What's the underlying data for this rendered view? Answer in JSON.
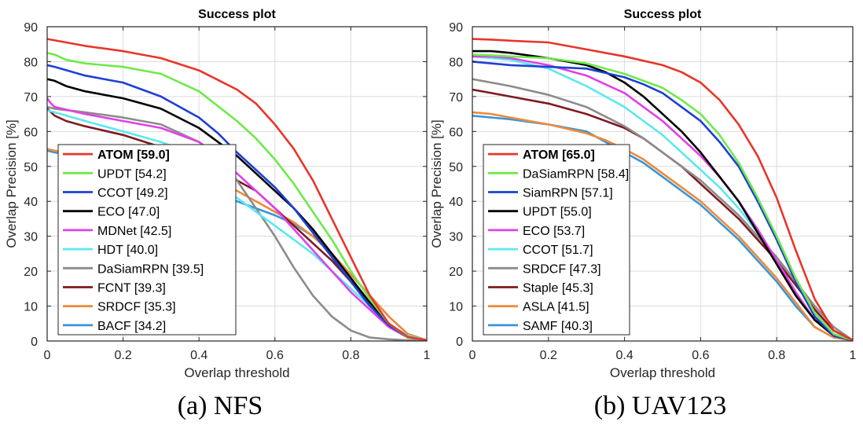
{
  "chart_data": [
    {
      "id": "nfs",
      "type": "line",
      "title": "Success plot",
      "xlabel": "Overlap threshold",
      "ylabel": "Overlap Precision [%]",
      "xlim": [
        0,
        1
      ],
      "ylim": [
        0,
        90
      ],
      "xticks": [
        "0",
        "0.2",
        "0.4",
        "0.6",
        "0.8",
        "1"
      ],
      "yticks": [
        "0",
        "10",
        "20",
        "30",
        "40",
        "50",
        "60",
        "70",
        "80",
        "90"
      ],
      "grid": true,
      "legend_position": "bottom-left",
      "caption": "(a) NFS",
      "series": [
        {
          "name": "ATOM",
          "score": "[59.0]",
          "bold": true,
          "color": "#e8352a",
          "x": [
            0,
            0.05,
            0.1,
            0.2,
            0.3,
            0.4,
            0.5,
            0.55,
            0.6,
            0.65,
            0.7,
            0.75,
            0.8,
            0.85,
            0.9,
            0.95,
            1.0
          ],
          "y": [
            86.5,
            85.5,
            84.5,
            83,
            81,
            77.5,
            72,
            68,
            62,
            55,
            46,
            35,
            24,
            13,
            5,
            1.2,
            0.2
          ]
        },
        {
          "name": "UPDT",
          "score": "[54.2]",
          "color": "#6ee94a",
          "x": [
            0,
            0.02,
            0.05,
            0.1,
            0.2,
            0.3,
            0.4,
            0.5,
            0.55,
            0.6,
            0.65,
            0.7,
            0.75,
            0.8,
            0.85,
            0.9,
            0.95,
            1.0
          ],
          "y": [
            82.5,
            82,
            80.5,
            79.5,
            78.5,
            76.5,
            71.5,
            63,
            58,
            52,
            45,
            37,
            29,
            20,
            12,
            5,
            1,
            0.2
          ]
        },
        {
          "name": "CCOT",
          "score": "[49.2]",
          "color": "#1f3fd4",
          "x": [
            0,
            0.02,
            0.1,
            0.2,
            0.3,
            0.4,
            0.45,
            0.5,
            0.55,
            0.6,
            0.65,
            0.7,
            0.75,
            0.8,
            0.85,
            0.9,
            0.95,
            1.0
          ],
          "y": [
            79,
            78.5,
            76,
            74,
            70,
            64,
            59.5,
            54,
            49,
            44,
            38,
            31,
            24,
            17,
            10,
            4.5,
            1,
            0.2
          ]
        },
        {
          "name": "ECO",
          "score": "[47.0]",
          "color": "#000000",
          "x": [
            0,
            0.02,
            0.05,
            0.1,
            0.2,
            0.3,
            0.4,
            0.45,
            0.5,
            0.55,
            0.6,
            0.65,
            0.7,
            0.75,
            0.8,
            0.85,
            0.9,
            0.95,
            1.0
          ],
          "y": [
            75,
            74.5,
            73,
            71.5,
            69.5,
            66.5,
            61,
            57,
            53,
            48,
            43,
            38,
            32,
            25,
            18,
            11,
            5,
            1,
            0.2
          ]
        },
        {
          "name": "MDNet",
          "score": "[42.5]",
          "color": "#e040e8",
          "x": [
            0,
            0.01,
            0.02,
            0.1,
            0.2,
            0.3,
            0.4,
            0.45,
            0.5,
            0.55,
            0.6,
            0.65,
            0.7,
            0.75,
            0.8,
            0.85,
            0.9,
            0.95,
            1.0
          ],
          "y": [
            69.5,
            68,
            67,
            65,
            63,
            61,
            57,
            53,
            48,
            43,
            38,
            32,
            26,
            20,
            14,
            9,
            4,
            1,
            0.2
          ]
        },
        {
          "name": "HDT",
          "score": "[40.0]",
          "color": "#5be8f0",
          "x": [
            0,
            0.02,
            0.1,
            0.2,
            0.3,
            0.35,
            0.4,
            0.45,
            0.5,
            0.55,
            0.6,
            0.65,
            0.7,
            0.75,
            0.8,
            0.85,
            0.9,
            0.95,
            1.0
          ],
          "y": [
            66,
            65.5,
            63,
            60,
            57,
            55,
            51,
            46,
            41,
            37,
            33,
            29,
            25,
            20,
            15,
            10,
            5,
            1.5,
            0.2
          ]
        },
        {
          "name": "DaSiamRPN",
          "score": "[39.5]",
          "color": "#8c8c8c",
          "x": [
            0,
            0.02,
            0.1,
            0.2,
            0.3,
            0.4,
            0.45,
            0.5,
            0.55,
            0.6,
            0.65,
            0.7,
            0.75,
            0.8,
            0.85,
            0.9,
            0.95,
            1.0
          ],
          "y": [
            67,
            66.5,
            65.5,
            64,
            62,
            57,
            53,
            46,
            38,
            30,
            21,
            13,
            7,
            3,
            1,
            0.5,
            0.2,
            0
          ]
        },
        {
          "name": "FCNT",
          "score": "[39.3]",
          "color": "#7f1a1f",
          "x": [
            0,
            0.02,
            0.05,
            0.1,
            0.2,
            0.3,
            0.4,
            0.45,
            0.5,
            0.55,
            0.6,
            0.65,
            0.7,
            0.75,
            0.8,
            0.85,
            0.9,
            0.95,
            1.0
          ],
          "y": [
            66.5,
            64.5,
            63,
            61.5,
            59,
            55.5,
            51,
            49,
            46,
            43,
            38,
            33,
            28,
            23,
            17,
            11,
            5,
            1,
            0.2
          ]
        },
        {
          "name": "SRDCF",
          "score": "[35.3]",
          "color": "#ee8a3a",
          "x": [
            0,
            0.02,
            0.1,
            0.2,
            0.3,
            0.4,
            0.45,
            0.5,
            0.55,
            0.6,
            0.65,
            0.7,
            0.75,
            0.8,
            0.85,
            0.9,
            0.95,
            1.0
          ],
          "y": [
            55,
            54.5,
            53,
            51,
            49,
            47,
            45,
            43,
            40,
            37,
            34,
            30,
            25,
            19,
            13,
            7,
            2,
            0.2
          ]
        },
        {
          "name": "BACF",
          "score": "[34.2]",
          "color": "#3a96d8",
          "x": [
            0,
            0.02,
            0.1,
            0.2,
            0.3,
            0.4,
            0.45,
            0.5,
            0.55,
            0.6,
            0.65,
            0.7,
            0.75,
            0.8,
            0.85,
            0.9,
            0.95,
            1.0
          ],
          "y": [
            54.5,
            54,
            52.5,
            50.5,
            48,
            45,
            42,
            40,
            38,
            36,
            33.5,
            30,
            25,
            19,
            13,
            7,
            2,
            0.2
          ]
        }
      ]
    },
    {
      "id": "uav123",
      "type": "line",
      "title": "Success plot",
      "xlabel": "Overlap threshold",
      "ylabel": "Overlap Precision [%]",
      "xlim": [
        0,
        1
      ],
      "ylim": [
        0,
        90
      ],
      "xticks": [
        "0",
        "0.2",
        "0.4",
        "0.6",
        "0.8",
        "1"
      ],
      "yticks": [
        "0",
        "10",
        "20",
        "30",
        "40",
        "50",
        "60",
        "70",
        "80",
        "90"
      ],
      "grid": true,
      "legend_position": "bottom-left",
      "caption": "(b) UAV123",
      "series": [
        {
          "name": "ATOM",
          "score": "[65.0]",
          "bold": true,
          "color": "#e8352a",
          "x": [
            0,
            0.05,
            0.1,
            0.2,
            0.3,
            0.4,
            0.5,
            0.55,
            0.6,
            0.65,
            0.7,
            0.75,
            0.8,
            0.85,
            0.9,
            0.95,
            1.0
          ],
          "y": [
            86.5,
            86.3,
            86,
            85.5,
            83.5,
            81.5,
            79,
            77,
            74,
            69,
            62,
            53,
            41,
            26,
            12,
            3,
            0.2
          ]
        },
        {
          "name": "DaSiamRPN",
          "score": "[58.4]",
          "color": "#6ee94a",
          "x": [
            0,
            0.05,
            0.1,
            0.2,
            0.3,
            0.4,
            0.5,
            0.55,
            0.6,
            0.65,
            0.7,
            0.75,
            0.8,
            0.85,
            0.9,
            0.95,
            1.0
          ],
          "y": [
            82,
            81.8,
            81.5,
            81,
            79.5,
            76.5,
            72.5,
            69,
            65,
            59,
            51,
            41,
            30,
            18,
            8,
            2,
            0.2
          ]
        },
        {
          "name": "SiamRPN",
          "score": "[57.1]",
          "color": "#1f3fd4",
          "x": [
            0,
            0.05,
            0.1,
            0.2,
            0.3,
            0.4,
            0.45,
            0.5,
            0.55,
            0.6,
            0.65,
            0.7,
            0.75,
            0.8,
            0.85,
            0.9,
            0.95,
            1.0
          ],
          "y": [
            80,
            79.5,
            79,
            78.5,
            78,
            75.5,
            73.5,
            71,
            67,
            63,
            57,
            50,
            40,
            29,
            17,
            7,
            1.5,
            0.2
          ]
        },
        {
          "name": "UPDT",
          "score": "[55.0]",
          "color": "#000000",
          "x": [
            0,
            0.05,
            0.1,
            0.2,
            0.3,
            0.35,
            0.4,
            0.45,
            0.5,
            0.55,
            0.6,
            0.65,
            0.7,
            0.75,
            0.8,
            0.85,
            0.9,
            0.95,
            1.0
          ],
          "y": [
            83,
            83,
            82.5,
            81,
            79,
            77,
            74,
            70,
            65,
            60,
            54,
            47,
            40,
            31,
            22,
            13,
            6,
            1.5,
            0.2
          ]
        },
        {
          "name": "ECO",
          "score": "[53.7]",
          "color": "#e040e8",
          "x": [
            0,
            0.05,
            0.1,
            0.2,
            0.3,
            0.35,
            0.4,
            0.45,
            0.5,
            0.55,
            0.6,
            0.65,
            0.7,
            0.75,
            0.8,
            0.85,
            0.9,
            0.95,
            1.0
          ],
          "y": [
            81.5,
            81.5,
            81,
            79,
            76,
            73.5,
            71,
            67,
            63,
            58,
            53,
            47,
            40,
            32,
            23,
            14,
            6,
            1.5,
            0.2
          ]
        },
        {
          "name": "CCOT",
          "score": "[51.7]",
          "color": "#5be8f0",
          "x": [
            0,
            0.05,
            0.1,
            0.2,
            0.3,
            0.35,
            0.4,
            0.45,
            0.5,
            0.55,
            0.6,
            0.65,
            0.7,
            0.75,
            0.8,
            0.85,
            0.9,
            0.95,
            1.0
          ],
          "y": [
            81.5,
            81,
            80.5,
            78,
            73,
            70,
            67,
            63,
            59,
            54,
            49,
            44,
            38,
            31,
            23,
            14,
            6,
            1.5,
            0.2
          ]
        },
        {
          "name": "SRDCF",
          "score": "[47.3]",
          "color": "#8c8c8c",
          "x": [
            0,
            0.05,
            0.1,
            0.2,
            0.3,
            0.4,
            0.45,
            0.5,
            0.55,
            0.6,
            0.65,
            0.7,
            0.75,
            0.8,
            0.85,
            0.9,
            0.95,
            1.0
          ],
          "y": [
            75,
            74,
            73,
            70.5,
            67,
            61.5,
            58,
            54,
            50,
            46,
            41,
            36,
            30,
            24,
            17,
            10,
            4,
            0.2
          ]
        },
        {
          "name": "Staple",
          "score": "[45.3]",
          "color": "#7f1a1f",
          "x": [
            0,
            0.05,
            0.1,
            0.2,
            0.3,
            0.4,
            0.45,
            0.5,
            0.55,
            0.6,
            0.65,
            0.7,
            0.75,
            0.8,
            0.85,
            0.9,
            0.95,
            1.0
          ],
          "y": [
            72,
            71,
            70,
            68,
            65,
            61,
            58,
            54,
            50,
            45,
            40,
            35,
            29,
            23,
            16,
            9,
            3,
            0.2
          ]
        },
        {
          "name": "ASLA",
          "score": "[41.5]",
          "color": "#ee8a3a",
          "x": [
            0,
            0.05,
            0.1,
            0.2,
            0.3,
            0.35,
            0.4,
            0.45,
            0.5,
            0.55,
            0.6,
            0.65,
            0.7,
            0.75,
            0.8,
            0.85,
            0.9,
            0.95,
            1.0
          ],
          "y": [
            65.5,
            65,
            64,
            62,
            59.5,
            57.5,
            55,
            52,
            48,
            44,
            40,
            35,
            30,
            24,
            18,
            11,
            4,
            1,
            0.2
          ]
        },
        {
          "name": "SAMF",
          "score": "[40.3]",
          "color": "#3a96d8",
          "x": [
            0,
            0.05,
            0.1,
            0.2,
            0.3,
            0.35,
            0.4,
            0.45,
            0.5,
            0.55,
            0.6,
            0.65,
            0.7,
            0.75,
            0.8,
            0.85,
            0.9,
            0.95,
            1.0
          ],
          "y": [
            64.5,
            64,
            63.5,
            62,
            60,
            57,
            54,
            51,
            47,
            43,
            39,
            34,
            29,
            23,
            17,
            10,
            4,
            1,
            0.2
          ]
        }
      ]
    }
  ]
}
